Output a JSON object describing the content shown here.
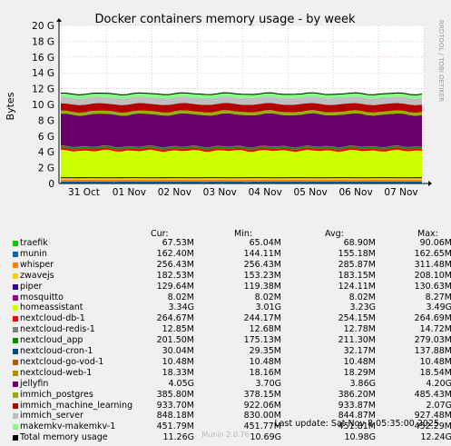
{
  "chart_data": {
    "type": "area",
    "title": "Docker containers memory usage - by week",
    "ylabel": "Bytes",
    "ylim": [
      0,
      20
    ],
    "yticks": [
      "0",
      "2 G",
      "4 G",
      "6 G",
      "8 G",
      "10 G",
      "12 G",
      "14 G",
      "16 G",
      "18 G",
      "20 G"
    ],
    "xticks": [
      "31 Oct",
      "01 Nov",
      "02 Nov",
      "03 Nov",
      "04 Nov",
      "05 Nov",
      "06 Nov",
      "07 Nov"
    ],
    "grid": true,
    "watermark": "RRDTOOL / TOBI OETIKER",
    "columns": [
      "Cur:",
      "Min:",
      "Avg:",
      "Max:"
    ],
    "series": [
      {
        "name": "traefik",
        "color": "#00cc00",
        "gb": 0.0675,
        "values": [
          "67.53M",
          "65.04M",
          "68.90M",
          "90.06M"
        ]
      },
      {
        "name": "munin",
        "color": "#0066b3",
        "gb": 0.1624,
        "values": [
          "162.40M",
          "144.11M",
          "155.18M",
          "162.65M"
        ]
      },
      {
        "name": "whisper",
        "color": "#ff8000",
        "gb": 0.2564,
        "values": [
          "256.43M",
          "256.43M",
          "285.87M",
          "311.48M"
        ]
      },
      {
        "name": "zwavejs",
        "color": "#ffcc00",
        "gb": 0.1825,
        "values": [
          "182.53M",
          "153.23M",
          "183.15M",
          "208.10M"
        ]
      },
      {
        "name": "piper",
        "color": "#330099",
        "gb": 0.1296,
        "values": [
          "129.64M",
          "119.38M",
          "124.11M",
          "130.63M"
        ]
      },
      {
        "name": "mosquitto",
        "color": "#990099",
        "gb": 0.008,
        "values": [
          "8.02M",
          "8.02M",
          "8.02M",
          "8.27M"
        ]
      },
      {
        "name": "homeassistant",
        "color": "#ccff00",
        "gb": 3.34,
        "values": [
          "3.34G",
          "3.01G",
          "3.23G",
          "3.49G"
        ]
      },
      {
        "name": "nextcloud-db-1",
        "color": "#ff0000",
        "gb": 0.2647,
        "values": [
          "264.67M",
          "244.17M",
          "254.15M",
          "264.69M"
        ]
      },
      {
        "name": "nextcloud-redis-1",
        "color": "#808080",
        "gb": 0.0129,
        "values": [
          "12.85M",
          "12.68M",
          "12.78M",
          "14.72M"
        ]
      },
      {
        "name": "nextcloud_app",
        "color": "#008f00",
        "gb": 0.2015,
        "values": [
          "201.50M",
          "175.13M",
          "211.30M",
          "279.03M"
        ]
      },
      {
        "name": "nextcloud-cron-1",
        "color": "#00487d",
        "gb": 0.03,
        "values": [
          "30.04M",
          "29.35M",
          "32.17M",
          "137.88M"
        ]
      },
      {
        "name": "nextcloud-go-vod-1",
        "color": "#b35a00",
        "gb": 0.0105,
        "values": [
          "10.48M",
          "10.48M",
          "10.48M",
          "10.48M"
        ]
      },
      {
        "name": "nextcloud-web-1",
        "color": "#b38f00",
        "gb": 0.0183,
        "values": [
          "18.33M",
          "18.16M",
          "18.29M",
          "18.54M"
        ]
      },
      {
        "name": "jellyfin",
        "color": "#6b006b",
        "gb": 4.05,
        "values": [
          "4.05G",
          "3.70G",
          "3.86G",
          "4.20G"
        ]
      },
      {
        "name": "immich_postgres",
        "color": "#8fb300",
        "gb": 0.3858,
        "values": [
          "385.80M",
          "378.15M",
          "386.20M",
          "485.43M"
        ]
      },
      {
        "name": "immich_machine_learning",
        "color": "#b30000",
        "gb": 0.9337,
        "values": [
          "933.70M",
          "922.06M",
          "933.87M",
          "2.07G"
        ]
      },
      {
        "name": "immich_server",
        "color": "#bebebe",
        "gb": 0.8482,
        "values": [
          "848.18M",
          "830.00M",
          "844.87M",
          "927.48M"
        ]
      },
      {
        "name": "makemkv-makemkv-1",
        "color": "#80ff80",
        "gb": 0.4518,
        "values": [
          "451.79M",
          "451.77M",
          "451.81M",
          "452.29M"
        ]
      }
    ],
    "total": {
      "name": "Total memory usage",
      "color": "#000000",
      "values": [
        "11.26G",
        "10.69G",
        "10.98G",
        "12.24G"
      ]
    }
  },
  "last_update": "Last update: Sat Nov  8 05:35:00 2025",
  "generator": "Munin 2.0.76"
}
